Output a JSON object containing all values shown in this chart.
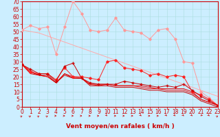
{
  "xlabel": "Vent moyen/en rafales ( km/h )",
  "xlim": [
    0,
    23
  ],
  "ylim": [
    0,
    70
  ],
  "yticks": [
    0,
    5,
    10,
    15,
    20,
    25,
    30,
    35,
    40,
    45,
    50,
    55,
    60,
    65,
    70
  ],
  "xticks": [
    0,
    1,
    2,
    3,
    4,
    5,
    6,
    7,
    8,
    9,
    10,
    11,
    12,
    13,
    14,
    15,
    16,
    17,
    18,
    19,
    20,
    21,
    22,
    23
  ],
  "bg_color": "#cceeff",
  "grid_color": "#aadddd",
  "line_pink_color": "#ff9999",
  "line_pink_diag_color": "#ffaaaa",
  "line_red1_color": "#ff2222",
  "line_red2_color": "#cc0000",
  "line_red3_color": "#dd0000",
  "line_red4_color": "#ee1111",
  "line_reddiag_color": "#cc0000",
  "xlabel_color": "#cc0000",
  "tick_color": "#cc0000",
  "spine_color": "#cc0000",
  "xlabel_fontsize": 6.5,
  "tick_fontsize": 5.5,
  "line1_y": [
    51,
    54,
    52,
    53,
    35,
    53,
    70,
    62,
    51,
    50,
    51,
    59,
    51,
    50,
    49,
    45,
    51,
    52,
    45,
    30,
    29,
    10,
    6,
    1
  ],
  "line2_y": [
    51,
    50,
    49,
    47,
    45,
    43,
    41,
    39,
    37,
    35,
    33,
    31,
    29,
    27,
    25,
    23,
    21,
    19,
    17,
    15,
    13,
    11,
    9,
    7
  ],
  "line3_y": [
    28,
    23,
    22,
    22,
    18,
    26,
    20,
    20,
    19,
    18,
    30,
    31,
    26,
    25,
    24,
    21,
    22,
    20,
    21,
    20,
    10,
    8,
    5,
    1
  ],
  "line4_y": [
    28,
    25,
    22,
    22,
    17,
    27,
    29,
    19,
    16,
    15,
    15,
    15,
    17,
    16,
    15,
    14,
    13,
    14,
    13,
    15,
    11,
    7,
    4,
    1
  ],
  "line5_y": [
    28,
    22,
    21,
    20,
    16,
    21,
    19,
    19,
    15,
    15,
    15,
    14,
    14,
    14,
    14,
    13,
    12,
    12,
    12,
    12,
    10,
    5,
    3,
    1
  ],
  "line6_y": [
    28,
    24,
    21,
    20,
    16,
    22,
    20,
    19,
    15,
    14,
    15,
    14,
    14,
    14,
    13,
    12,
    12,
    11,
    11,
    11,
    9,
    5,
    3,
    1
  ],
  "line7_y": [
    28,
    23,
    21,
    21,
    16,
    22,
    19,
    19,
    14,
    14,
    14,
    13,
    13,
    13,
    12,
    11,
    11,
    10,
    10,
    10,
    8,
    4,
    2,
    0
  ],
  "arrow_angles": [
    45,
    45,
    45,
    45,
    0,
    0,
    0,
    0,
    0,
    0,
    315,
    0,
    0,
    0,
    315,
    0,
    0,
    315,
    315,
    315,
    315,
    225,
    315,
    45
  ]
}
